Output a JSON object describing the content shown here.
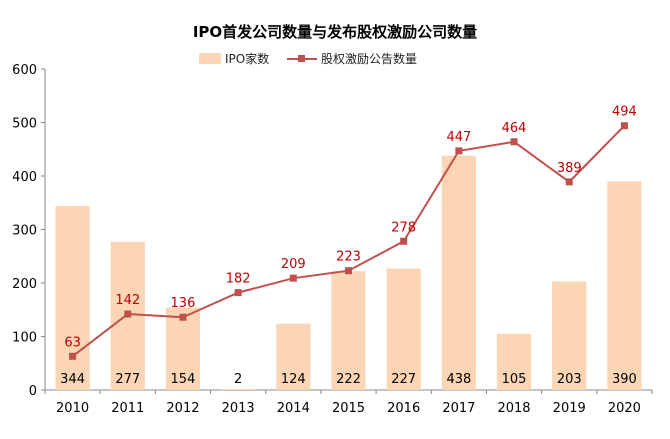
{
  "chart_data": {
    "type": "bar+line",
    "title": "IPO首发公司数量与发布股权激励公司数量",
    "categories": [
      "2010",
      "2011",
      "2012",
      "2013",
      "2014",
      "2015",
      "2016",
      "2017",
      "2018",
      "2019",
      "2020"
    ],
    "series": [
      {
        "name": "IPO家数",
        "type": "bar",
        "color": "#fcd5b4",
        "values": [
          344,
          277,
          154,
          2,
          124,
          222,
          227,
          438,
          105,
          203,
          390
        ]
      },
      {
        "name": "股权激励公告数量",
        "type": "line",
        "color": "#c0504d",
        "label_color": "#c00000",
        "values": [
          63,
          142,
          136,
          182,
          209,
          223,
          278,
          447,
          464,
          389,
          494
        ]
      }
    ],
    "ylim": [
      0,
      600
    ],
    "yticks": [
      0,
      100,
      200,
      300,
      400,
      500,
      600
    ],
    "xlabel": "",
    "ylabel": "",
    "legend": "top-center",
    "grid": false
  }
}
